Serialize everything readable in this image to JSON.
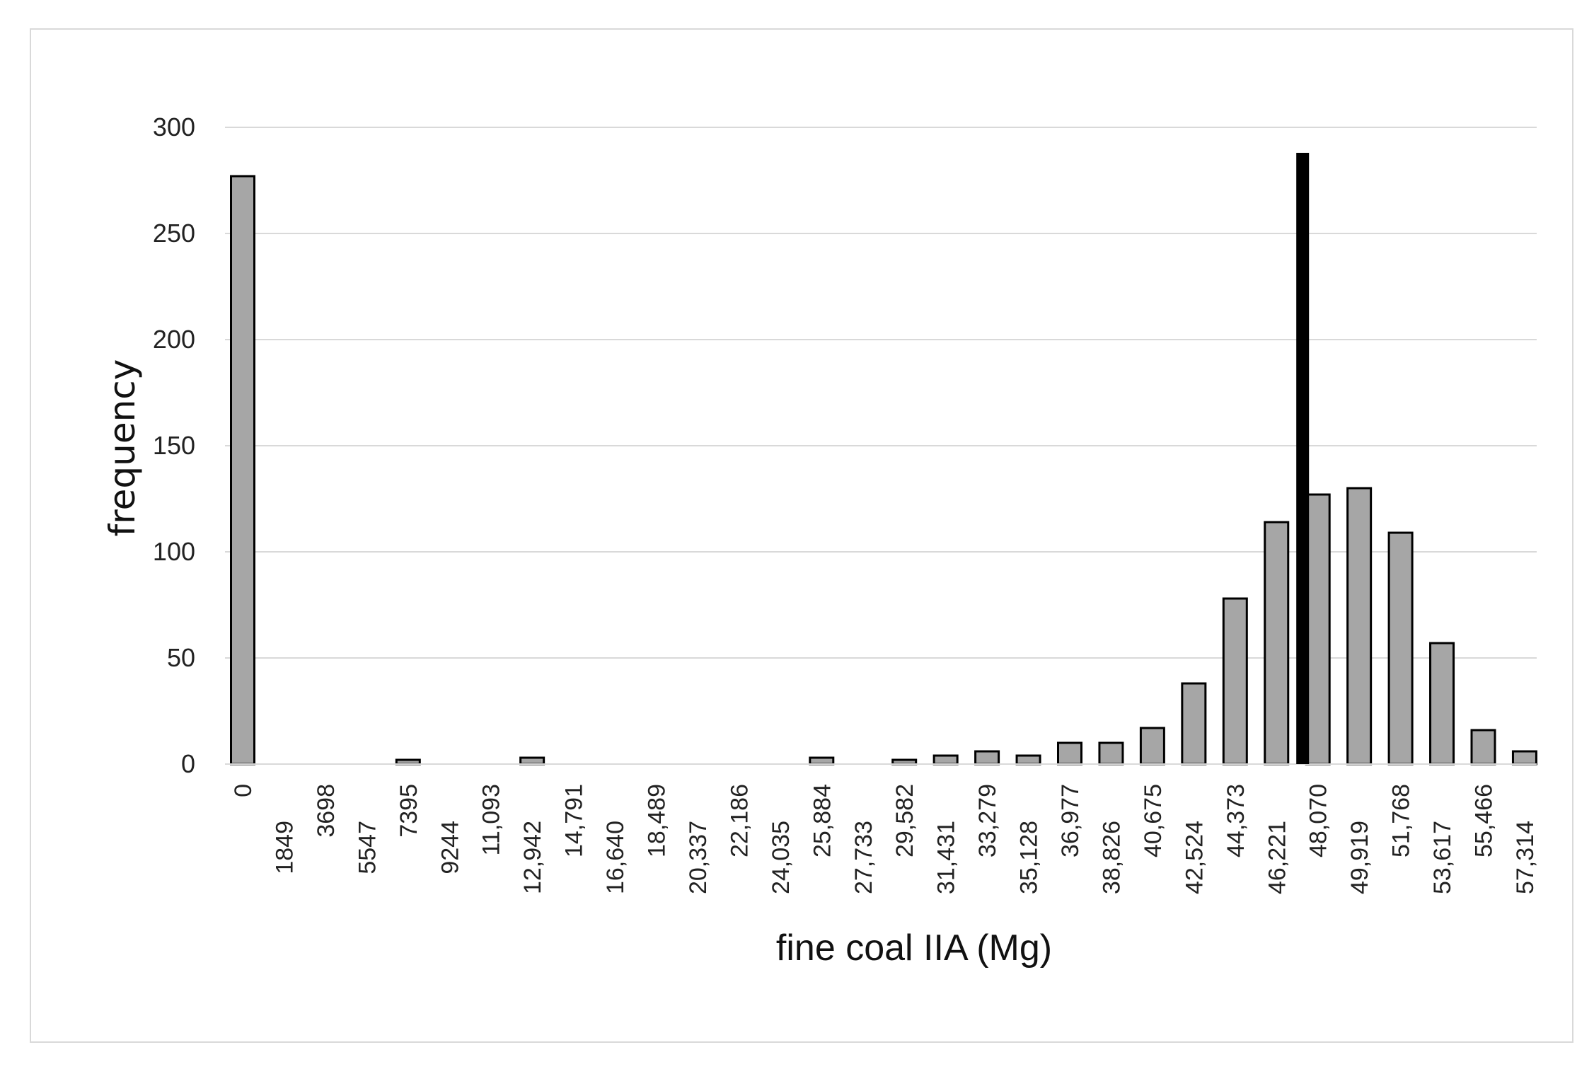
{
  "chart_data": {
    "type": "bar",
    "xlabel": "fine coal IIA (Mg)",
    "ylabel": "frequency",
    "ylim": [
      0,
      300
    ],
    "yticks": [
      "0",
      "50",
      "100",
      "150",
      "200",
      "250",
      "300"
    ],
    "grid": true,
    "categories": [
      "0",
      "1849",
      "3698",
      "5547",
      "7395",
      "9244",
      "11,093",
      "12,942",
      "14,791",
      "16,640",
      "18,489",
      "20,337",
      "22,186",
      "24,035",
      "25,884",
      "27,733",
      "29,582",
      "31,431",
      "33,279",
      "35,128",
      "36,977",
      "38,826",
      "40,675",
      "42,524",
      "44,373",
      "46,221",
      "48,070",
      "49,919",
      "51,768",
      "53,617",
      "55,466",
      "57,314"
    ],
    "values": [
      277,
      0,
      0,
      0,
      2,
      0,
      0,
      3,
      0,
      0,
      0,
      0,
      0,
      0,
      3,
      0,
      2,
      4,
      6,
      4,
      10,
      10,
      17,
      38,
      78,
      114,
      127,
      130,
      109,
      57,
      16,
      6
    ],
    "reference_line": {
      "x": 47390,
      "height": 288,
      "color": "#000000"
    },
    "bar_color": "#a6a6a6",
    "bar_edge_color": "#000000"
  }
}
